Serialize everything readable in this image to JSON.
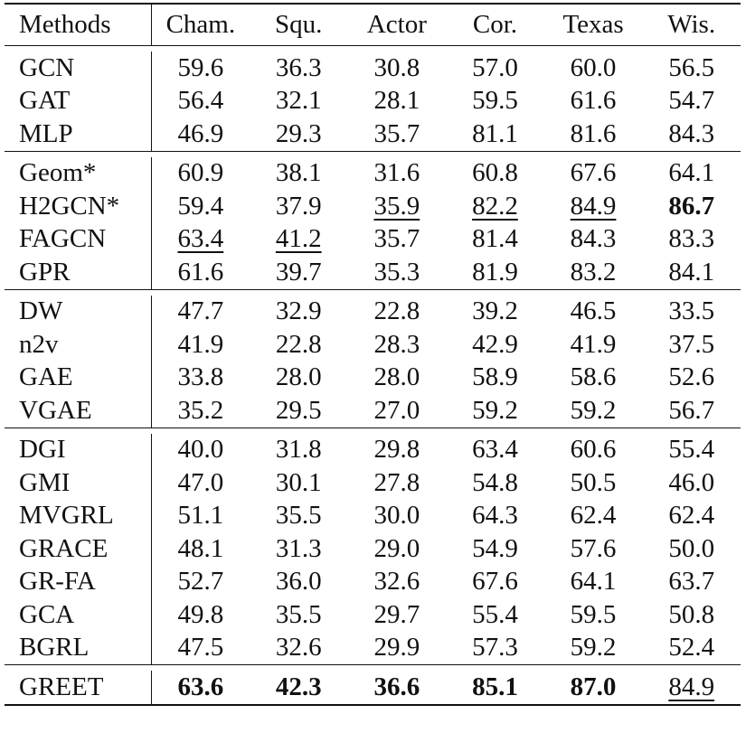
{
  "table": {
    "columns": [
      "Methods",
      "Cham.",
      "Squ.",
      "Actor",
      "Cor.",
      "Texas",
      "Wis."
    ],
    "groups": [
      {
        "rows": [
          {
            "method": "GCN",
            "values": [
              "59.6",
              "36.3",
              "30.8",
              "57.0",
              "60.0",
              "56.5"
            ],
            "marks": [
              "",
              "",
              "",
              "",
              "",
              ""
            ]
          },
          {
            "method": "GAT",
            "values": [
              "56.4",
              "32.1",
              "28.1",
              "59.5",
              "61.6",
              "54.7"
            ],
            "marks": [
              "",
              "",
              "",
              "",
              "",
              ""
            ]
          },
          {
            "method": "MLP",
            "values": [
              "46.9",
              "29.3",
              "35.7",
              "81.1",
              "81.6",
              "84.3"
            ],
            "marks": [
              "",
              "",
              "",
              "",
              "",
              ""
            ]
          }
        ]
      },
      {
        "rows": [
          {
            "method": "Geom*",
            "values": [
              "60.9",
              "38.1",
              "31.6",
              "60.8",
              "67.6",
              "64.1"
            ],
            "marks": [
              "",
              "",
              "",
              "",
              "",
              ""
            ]
          },
          {
            "method": "H2GCN*",
            "values": [
              "59.4",
              "37.9",
              "35.9",
              "82.2",
              "84.9",
              "86.7"
            ],
            "marks": [
              "",
              "",
              "second",
              "second",
              "second",
              "best"
            ]
          },
          {
            "method": "FAGCN",
            "values": [
              "63.4",
              "41.2",
              "35.7",
              "81.4",
              "84.3",
              "83.3"
            ],
            "marks": [
              "second",
              "second",
              "",
              "",
              "",
              ""
            ]
          },
          {
            "method": "GPR",
            "values": [
              "61.6",
              "39.7",
              "35.3",
              "81.9",
              "83.2",
              "84.1"
            ],
            "marks": [
              "",
              "",
              "",
              "",
              "",
              ""
            ]
          }
        ]
      },
      {
        "rows": [
          {
            "method": "DW",
            "values": [
              "47.7",
              "32.9",
              "22.8",
              "39.2",
              "46.5",
              "33.5"
            ],
            "marks": [
              "",
              "",
              "",
              "",
              "",
              ""
            ]
          },
          {
            "method": "n2v",
            "values": [
              "41.9",
              "22.8",
              "28.3",
              "42.9",
              "41.9",
              "37.5"
            ],
            "marks": [
              "",
              "",
              "",
              "",
              "",
              ""
            ]
          },
          {
            "method": "GAE",
            "values": [
              "33.8",
              "28.0",
              "28.0",
              "58.9",
              "58.6",
              "52.6"
            ],
            "marks": [
              "",
              "",
              "",
              "",
              "",
              ""
            ]
          },
          {
            "method": "VGAE",
            "values": [
              "35.2",
              "29.5",
              "27.0",
              "59.2",
              "59.2",
              "56.7"
            ],
            "marks": [
              "",
              "",
              "",
              "",
              "",
              ""
            ]
          }
        ]
      },
      {
        "rows": [
          {
            "method": "DGI",
            "values": [
              "40.0",
              "31.8",
              "29.8",
              "63.4",
              "60.6",
              "55.4"
            ],
            "marks": [
              "",
              "",
              "",
              "",
              "",
              ""
            ]
          },
          {
            "method": "GMI",
            "values": [
              "47.0",
              "30.1",
              "27.8",
              "54.8",
              "50.5",
              "46.0"
            ],
            "marks": [
              "",
              "",
              "",
              "",
              "",
              ""
            ]
          },
          {
            "method": "MVGRL",
            "values": [
              "51.1",
              "35.5",
              "30.0",
              "64.3",
              "62.4",
              "62.4"
            ],
            "marks": [
              "",
              "",
              "",
              "",
              "",
              ""
            ]
          },
          {
            "method": "GRACE",
            "values": [
              "48.1",
              "31.3",
              "29.0",
              "54.9",
              "57.6",
              "50.0"
            ],
            "marks": [
              "",
              "",
              "",
              "",
              "",
              ""
            ]
          },
          {
            "method": "GR-FA",
            "values": [
              "52.7",
              "36.0",
              "32.6",
              "67.6",
              "64.1",
              "63.7"
            ],
            "marks": [
              "",
              "",
              "",
              "",
              "",
              ""
            ]
          },
          {
            "method": "GCA",
            "values": [
              "49.8",
              "35.5",
              "29.7",
              "55.4",
              "59.5",
              "50.8"
            ],
            "marks": [
              "",
              "",
              "",
              "",
              "",
              ""
            ]
          },
          {
            "method": "BGRL",
            "values": [
              "47.5",
              "32.6",
              "29.9",
              "57.3",
              "59.2",
              "52.4"
            ],
            "marks": [
              "",
              "",
              "",
              "",
              "",
              ""
            ]
          }
        ]
      },
      {
        "rows": [
          {
            "method": "GREET",
            "values": [
              "63.6",
              "42.3",
              "36.6",
              "85.1",
              "87.0",
              "84.9"
            ],
            "marks": [
              "best",
              "best",
              "best",
              "best",
              "best",
              "second"
            ]
          }
        ]
      }
    ]
  }
}
